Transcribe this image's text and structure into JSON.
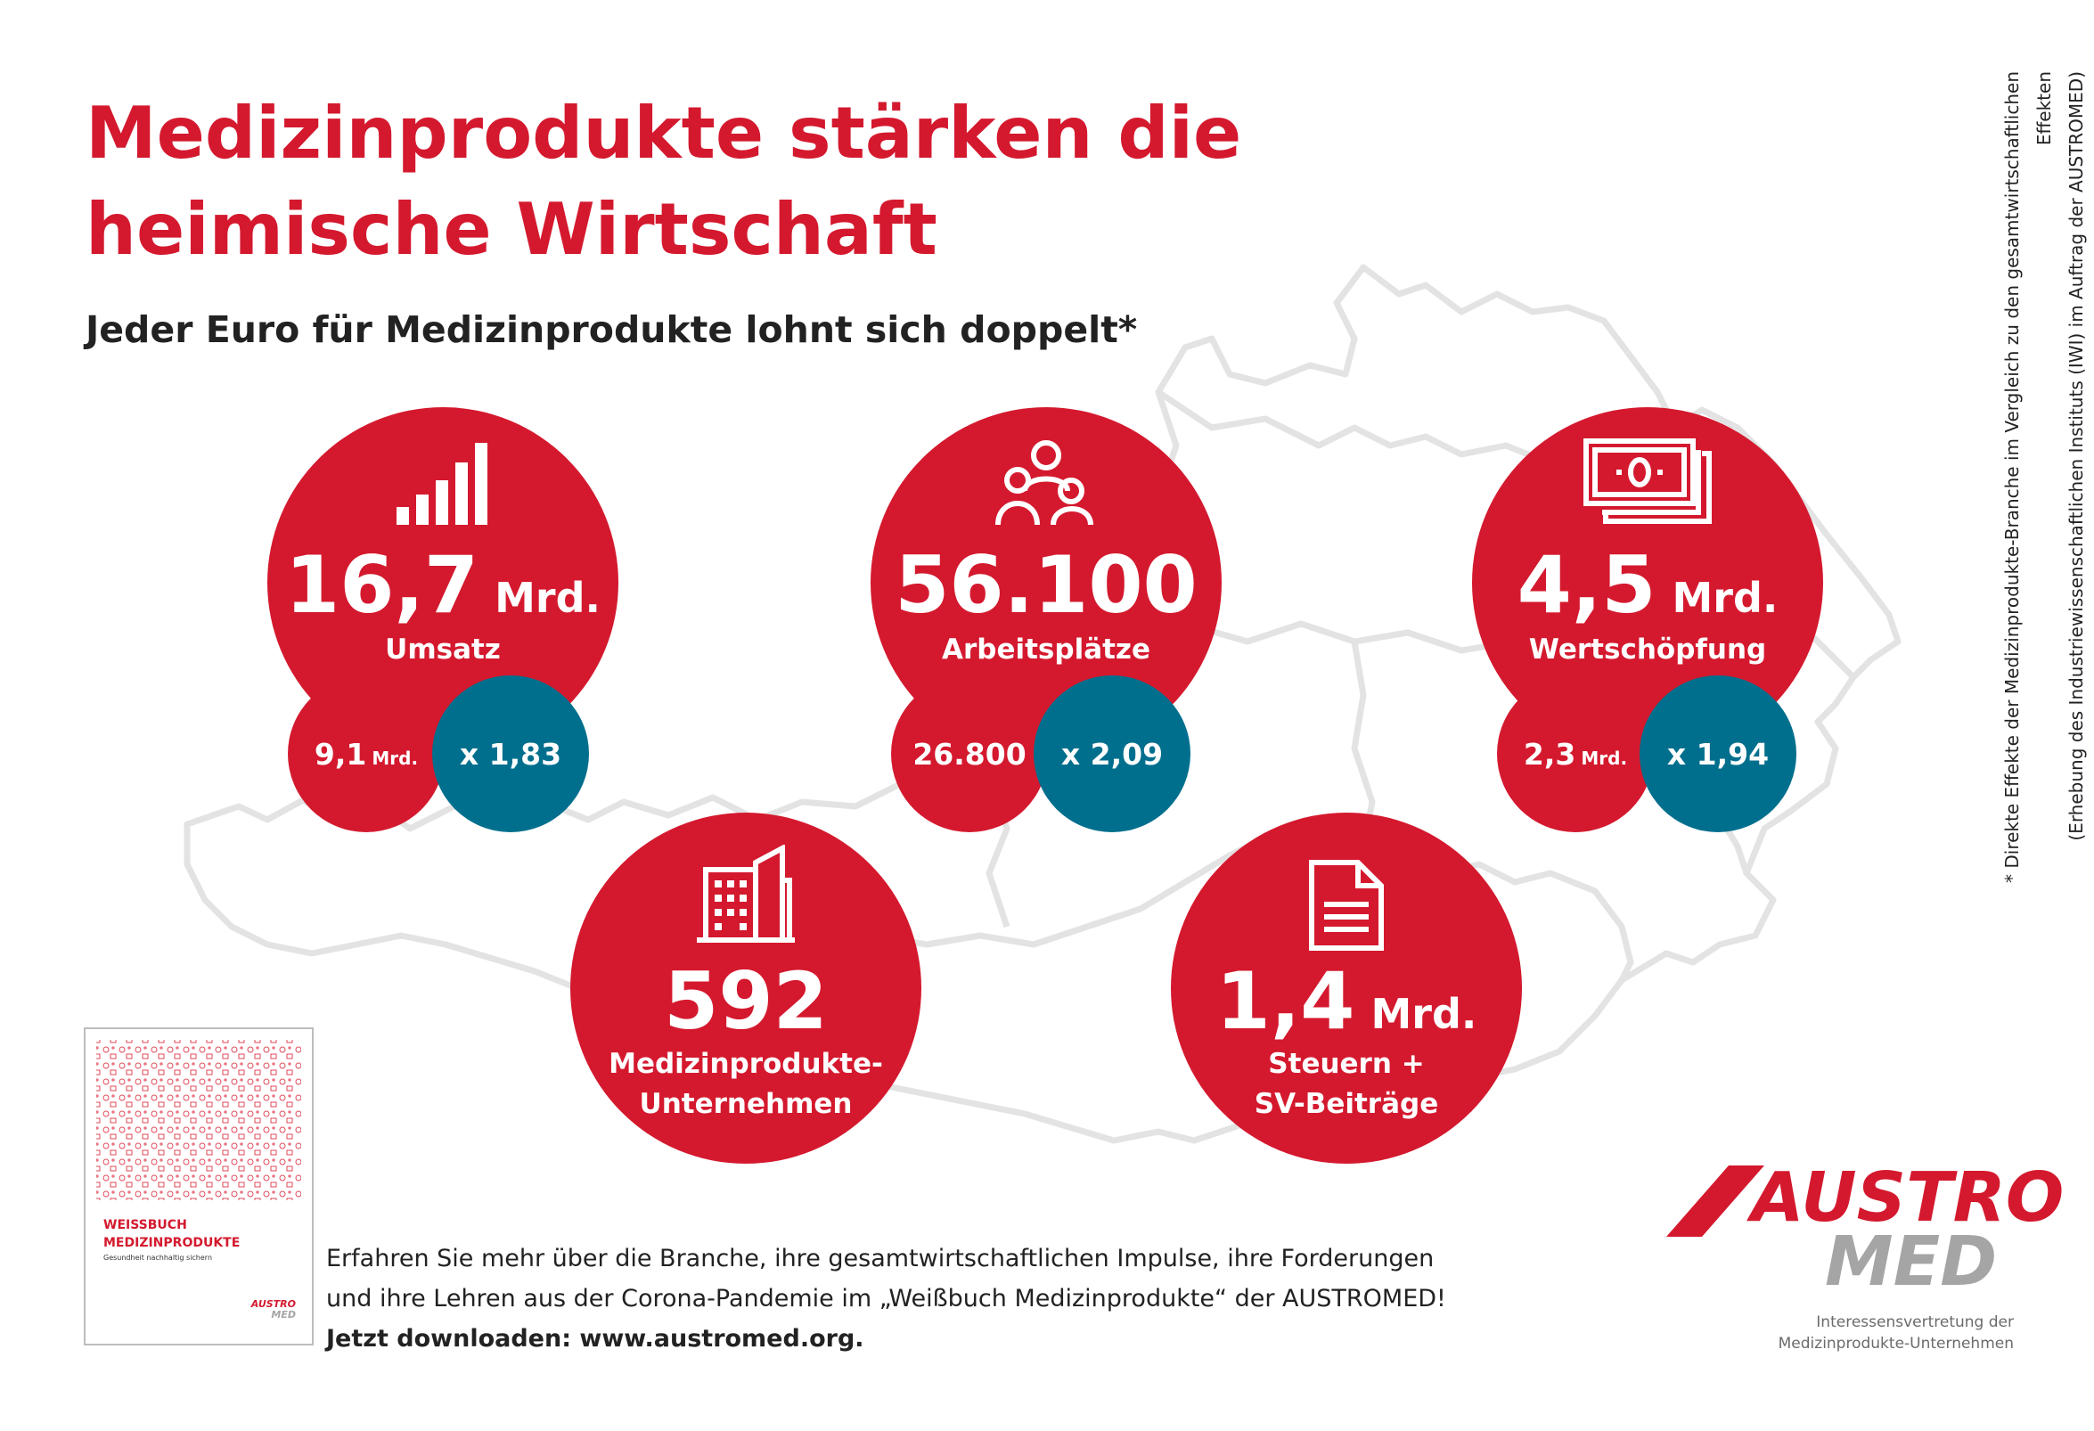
{
  "header": {
    "title_line1": "Medizinprodukte stärken die",
    "title_line2": "heimische Wirtschaft",
    "subtitle": "Jeder Euro für Medizinprodukte lohnt sich doppelt*"
  },
  "side_note": {
    "line1": "* Direkte Effekte der Medizinprodukte-Branche im Vergleich zu den gesamtwirtschaftlichen Effekten",
    "line2": "(Erhebung des Industriewissenschaftlichen Instituts (IWI) im Auftrag der AUSTROMED)"
  },
  "stats": {
    "umsatz": {
      "icon": "signal-bars-icon",
      "value": "16,7",
      "unit": "Mrd.",
      "label": "Umsatz",
      "direct_value": "9,1",
      "direct_unit": "Mrd.",
      "multiplier": "x 1,83"
    },
    "arbeitsplaetze": {
      "icon": "people-group-icon",
      "value": "56.100",
      "label": "Arbeitsplätze",
      "direct_value": "26.800",
      "multiplier": "x 2,09"
    },
    "wertschoepfung": {
      "icon": "banknotes-icon",
      "value": "4,5",
      "unit": "Mrd.",
      "label": "Wertschöpfung",
      "direct_value": "2,3",
      "direct_unit": "Mrd.",
      "multiplier": "x 1,94"
    },
    "unternehmen": {
      "icon": "buildings-icon",
      "value": "592",
      "label_line1": "Medizinprodukte-",
      "label_line2": "Unternehmen"
    },
    "steuern": {
      "icon": "document-icon",
      "value": "1,4",
      "unit": "Mrd.",
      "label_line1": "Steuern +",
      "label_line2": "SV-Beiträge"
    }
  },
  "book": {
    "title_line1": "WEISSBUCH",
    "title_line2": "MEDIZINPRODUKTE",
    "subtitle": "Gesundheit nachhaltig sichern",
    "logo_line1": "AUSTRO",
    "logo_line2": "MED"
  },
  "footer": {
    "line1": "Erfahren Sie mehr über die Branche, ihre gesamtwirtschaftlichen Impulse, ihre Forderungen",
    "line2": "und ihre Lehren aus der Corona-Pandemie im „Weißbuch Medizinprodukte“ der AUSTROMED!",
    "line3": "Jetzt downloaden: www.austromed.org."
  },
  "logo": {
    "line1": "AUSTRO",
    "line2": "MED",
    "tagline_line1": "Interessensvertretung der",
    "tagline_line2": "Medizinprodukte-Unternehmen"
  },
  "colors": {
    "red": "#d4192e",
    "blue": "#006f8d",
    "grey": "#a5a5a5",
    "map_outline": "#e3e3e3"
  }
}
